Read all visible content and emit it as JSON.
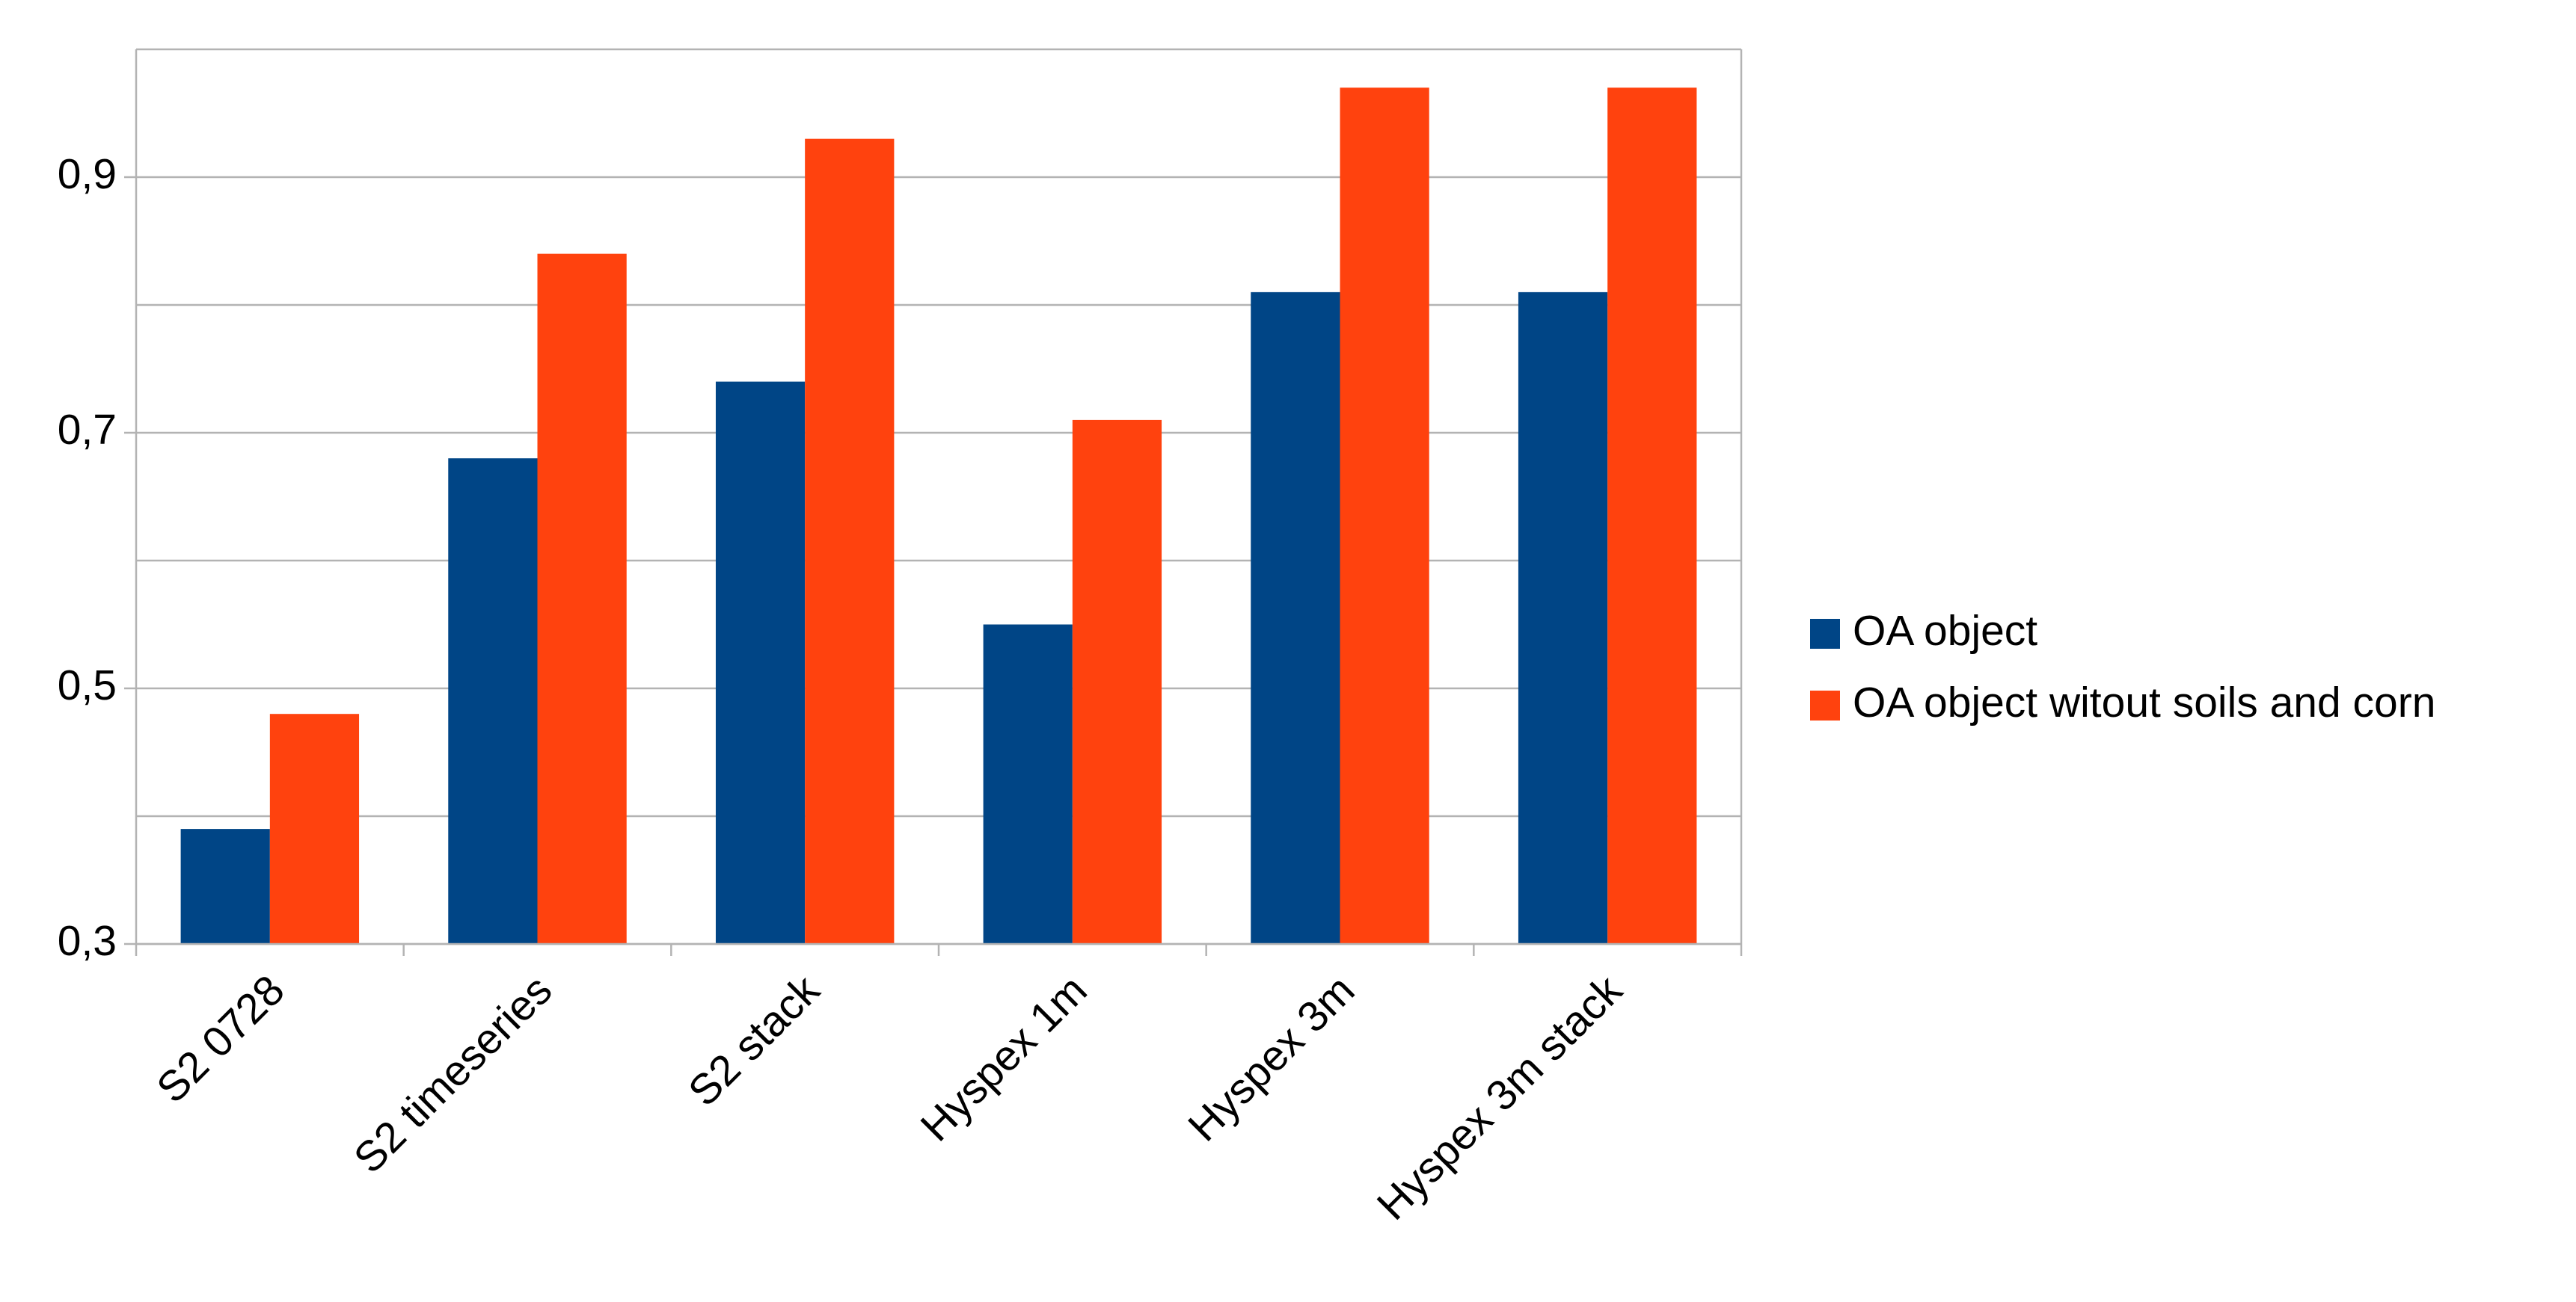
{
  "chart_data": {
    "type": "bar",
    "categories": [
      "S2 0728",
      "S2 timeseries",
      "S2 stack",
      "Hyspex 1m",
      "Hyspex 3m",
      "Hyspex 3m stack"
    ],
    "series": [
      {
        "name": "OA object",
        "color": "#004586",
        "values": [
          0.39,
          0.68,
          0.74,
          0.55,
          0.81,
          0.81
        ]
      },
      {
        "name": "OA object witout soils and corn",
        "color": "#ff420e",
        "values": [
          0.48,
          0.84,
          0.93,
          0.71,
          0.97,
          0.97
        ]
      }
    ],
    "ylim": [
      0.3,
      1.0
    ],
    "yticks": [
      {
        "value": 0.3,
        "label": "0,3"
      },
      {
        "value": 0.5,
        "label": "0,5"
      },
      {
        "value": 0.7,
        "label": "0,7"
      },
      {
        "value": 0.9,
        "label": "0,9"
      }
    ],
    "minor_yticks": [
      0.4,
      0.6,
      0.8,
      1.0
    ],
    "grid": true,
    "legend": "right"
  }
}
